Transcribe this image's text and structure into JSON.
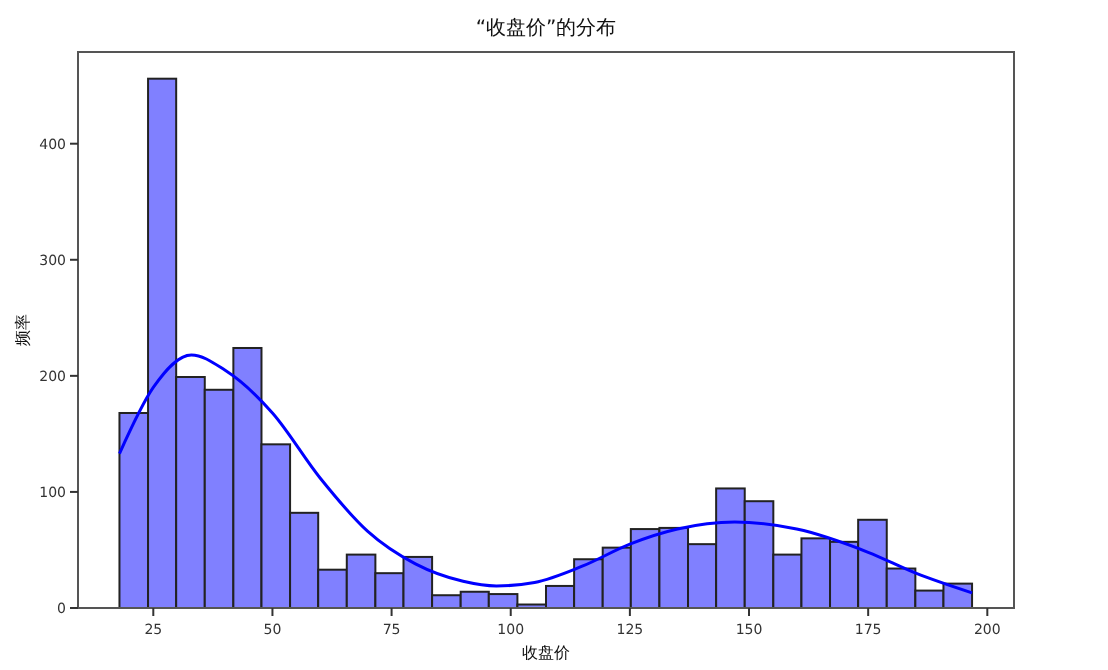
{
  "chart_data": {
    "type": "histogram",
    "title": "“收盘价”的分布",
    "xlabel": "收盘价",
    "ylabel": "频率",
    "bins": [
      17.9,
      23.9,
      29.8,
      35.8,
      41.8,
      47.7,
      53.7,
      59.6,
      65.6,
      71.6,
      77.5,
      83.5,
      89.5,
      95.4,
      101.4,
      107.4,
      113.3,
      119.3,
      125.2,
      131.2,
      137.2,
      143.1,
      149.1,
      155.1,
      161.0,
      167.0,
      172.9,
      178.9,
      184.9,
      190.8,
      196.8
    ],
    "values": [
      168,
      456,
      199,
      188,
      224,
      141,
      82,
      33,
      46,
      30,
      44,
      11,
      14,
      12,
      3,
      19,
      42,
      52,
      68,
      69,
      55,
      103,
      92,
      46,
      60,
      57,
      76,
      34,
      15,
      21
    ],
    "color": "#8080ff",
    "series": [
      {
        "type": "line",
        "color": "#0000ff",
        "x": [
          17.9,
          25,
          33,
          40,
          50,
          60,
          70,
          80,
          90,
          97,
          105,
          115,
          125,
          135,
          147,
          160,
          175,
          185,
          196.8
        ],
        "values": [
          133,
          190,
          218,
          205,
          168,
          112,
          66,
          38,
          23,
          19,
          22,
          36,
          55,
          68,
          74,
          68,
          48,
          30,
          13
        ]
      }
    ],
    "xlim": [
      9.2,
      205.6
    ],
    "xticks": [
      25,
      50,
      75,
      100,
      125,
      150,
      175,
      200
    ],
    "ylim": [
      0,
      479
    ],
    "yticks": [
      0,
      100,
      200,
      300,
      400
    ],
    "grid": false
  }
}
